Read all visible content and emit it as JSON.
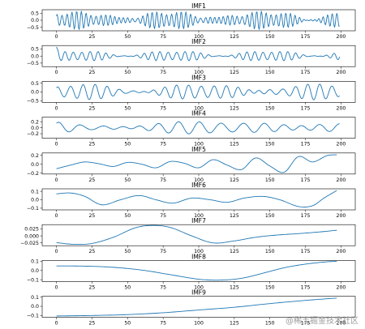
{
  "chart_data": [
    {
      "type": "line",
      "title": "IMF1",
      "x_range": [
        0,
        200
      ],
      "ylim": [
        -0.75,
        0.75
      ],
      "yticks": [
        -0.5,
        0.0,
        0.5
      ],
      "ytick_labels": [
        "−0.5",
        "0.0",
        "0.5"
      ],
      "xticks": [
        0,
        25,
        50,
        75,
        100,
        125,
        150,
        175,
        200
      ],
      "color": "#1f77b4",
      "signal": {
        "kind": "sines",
        "components": [
          {
            "amp": 0.32,
            "freq": 0.3,
            "phase": 0
          },
          {
            "amp": 0.22,
            "freq": 0.285,
            "phase": 1.2
          },
          {
            "amp": 0.14,
            "freq": 0.34,
            "phase": 2.3
          }
        ]
      }
    },
    {
      "type": "line",
      "title": "IMF2",
      "x_range": [
        0,
        200
      ],
      "ylim": [
        -0.75,
        0.75
      ],
      "yticks": [
        -0.5,
        0.0,
        0.5
      ],
      "ytick_labels": [
        "−0.5",
        "0.0",
        "0.5"
      ],
      "xticks": [
        0,
        25,
        50,
        75,
        100,
        125,
        150,
        175,
        200
      ],
      "color": "#1f77b4",
      "signal": {
        "kind": "sines",
        "components": [
          {
            "amp": 0.18,
            "freq": 0.18,
            "phase": 0.4
          },
          {
            "amp": 0.14,
            "freq": 0.165,
            "phase": 1.9
          },
          {
            "amp": 0.06,
            "freq": 0.21,
            "phase": 0.7
          }
        ],
        "start_spike": 0.7
      }
    },
    {
      "type": "line",
      "title": "IMF3",
      "x_range": [
        0,
        200
      ],
      "ylim": [
        -0.6,
        0.6
      ],
      "yticks": [
        -0.5,
        0.0,
        0.5
      ],
      "ytick_labels": [
        "−0.5",
        "0.0",
        "0.5"
      ],
      "xticks": [
        0,
        25,
        50,
        75,
        100,
        125,
        150,
        175,
        200
      ],
      "color": "#1f77b4",
      "signal": {
        "kind": "sines",
        "components": [
          {
            "amp": 0.22,
            "freq": 0.12,
            "phase": 0.2
          },
          {
            "amp": 0.17,
            "freq": 0.108,
            "phase": 1.5
          },
          {
            "amp": 0.07,
            "freq": 0.14,
            "phase": 2.8
          }
        ]
      }
    },
    {
      "type": "line",
      "title": "IMF4",
      "x_range": [
        0,
        200
      ],
      "ylim": [
        -0.35,
        0.35
      ],
      "yticks": [
        -0.2,
        0.0,
        0.2
      ],
      "ytick_labels": [
        "−0.2",
        "0.0",
        "0.2"
      ],
      "xticks": [
        0,
        25,
        50,
        75,
        100,
        125,
        150,
        175,
        200
      ],
      "color": "#1f77b4",
      "signal": {
        "kind": "sines",
        "components": [
          {
            "amp": 0.11,
            "freq": 0.07,
            "phase": 1.0
          },
          {
            "amp": 0.08,
            "freq": 0.062,
            "phase": 0.2
          },
          {
            "amp": 0.04,
            "freq": 0.081,
            "phase": 2.0
          }
        ]
      }
    },
    {
      "type": "line",
      "title": "IMF5",
      "x_range": [
        0,
        200
      ],
      "ylim": [
        -0.22,
        0.25
      ],
      "yticks": [
        -0.2,
        0.0,
        0.2
      ],
      "ytick_labels": [
        "−0.2",
        "0.0",
        "0.2"
      ],
      "xticks": [
        0,
        25,
        50,
        75,
        100,
        125,
        150,
        175,
        200
      ],
      "color": "#1f77b4",
      "signal": {
        "kind": "points",
        "x": [
          0,
          10,
          20,
          30,
          40,
          50,
          60,
          70,
          80,
          90,
          100,
          110,
          120,
          130,
          140,
          150,
          160,
          170,
          180,
          190,
          197
        ],
        "y": [
          -0.1,
          -0.02,
          0.05,
          0.01,
          -0.05,
          0.04,
          0.0,
          -0.08,
          0.06,
          0.02,
          -0.08,
          0.1,
          -0.02,
          -0.12,
          0.14,
          -0.04,
          -0.18,
          0.17,
          0.05,
          0.19,
          0.21
        ]
      }
    },
    {
      "type": "line",
      "title": "IMF6",
      "x_range": [
        0,
        200
      ],
      "ylim": [
        -0.12,
        0.13
      ],
      "yticks": [
        -0.1,
        0.0,
        0.1
      ],
      "ytick_labels": [
        "−0.1",
        "0.0",
        "0.1"
      ],
      "xticks": [
        0,
        25,
        50,
        75,
        100,
        125,
        150,
        175,
        200
      ],
      "color": "#1f77b4",
      "signal": {
        "kind": "points",
        "x": [
          0,
          10,
          20,
          32,
          45,
          58,
          70,
          82,
          95,
          108,
          120,
          132,
          145,
          157,
          170,
          180,
          188,
          197
        ],
        "y": [
          0.07,
          0.08,
          0.04,
          -0.06,
          0.0,
          0.05,
          0.0,
          -0.04,
          0.02,
          0.0,
          -0.03,
          0.02,
          0.04,
          0.0,
          -0.08,
          -0.07,
          0.02,
          0.11
        ]
      }
    },
    {
      "type": "line",
      "title": "IMF7",
      "x_range": [
        0,
        200
      ],
      "ylim": [
        -0.035,
        0.04
      ],
      "yticks": [
        -0.025,
        0.0,
        0.025
      ],
      "ytick_labels": [
        "−0.025",
        "0.000",
        "0.025"
      ],
      "xticks": [
        0,
        25,
        50,
        75,
        100,
        125,
        150,
        175,
        200
      ],
      "color": "#1f77b4",
      "signal": {
        "kind": "points",
        "x": [
          0,
          12,
          25,
          40,
          55,
          67,
          80,
          95,
          110,
          125,
          140,
          155,
          170,
          185,
          197
        ],
        "y": [
          -0.024,
          -0.03,
          -0.027,
          -0.005,
          0.028,
          0.037,
          0.03,
          0.0,
          -0.025,
          -0.018,
          -0.005,
          0.003,
          0.008,
          0.014,
          0.02
        ]
      }
    },
    {
      "type": "line",
      "title": "IMF8",
      "x_range": [
        0,
        200
      ],
      "ylim": [
        -0.12,
        0.11
      ],
      "yticks": [
        -0.1,
        0.0,
        0.1
      ],
      "ytick_labels": [
        "−0.1",
        "0.0",
        "0.1"
      ],
      "xticks": [
        0,
        25,
        50,
        75,
        100,
        125,
        150,
        175,
        200
      ],
      "color": "#1f77b4",
      "signal": {
        "kind": "points",
        "x": [
          0,
          20,
          40,
          60,
          80,
          100,
          115,
          130,
          145,
          160,
          175,
          190,
          197
        ],
        "y": [
          0.05,
          0.048,
          0.035,
          0.005,
          -0.045,
          -0.095,
          -0.105,
          -0.085,
          -0.03,
          0.03,
          0.07,
          0.095,
          0.1
        ]
      }
    },
    {
      "type": "line",
      "title": "IMF9",
      "x_range": [
        0,
        200
      ],
      "ylim": [
        -0.12,
        0.11
      ],
      "yticks": [
        -0.1,
        0.0,
        0.1
      ],
      "ytick_labels": [
        "−0.1",
        "0.0",
        "0.1"
      ],
      "xticks": [
        0,
        25,
        50,
        75,
        100,
        125,
        150,
        175,
        200
      ],
      "color": "#1f77b4",
      "signal": {
        "kind": "points",
        "x": [
          0,
          25,
          50,
          75,
          100,
          125,
          150,
          175,
          197
        ],
        "y": [
          -0.105,
          -0.1,
          -0.09,
          -0.07,
          -0.04,
          -0.01,
          0.03,
          0.065,
          0.09
        ]
      }
    }
  ],
  "watermark": "@稀土掘金技术社区"
}
